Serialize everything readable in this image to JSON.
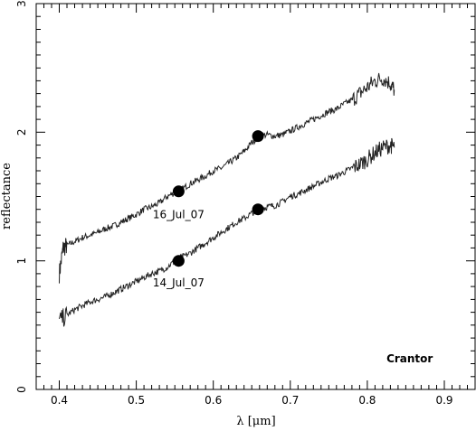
{
  "chart_data": {
    "type": "line",
    "xlabel": "λ [μm]",
    "ylabel": "reflectance",
    "xlim": [
      0.37,
      0.94
    ],
    "ylim": [
      0,
      3
    ],
    "xticks": [
      0.4,
      0.5,
      0.6,
      0.7,
      0.8,
      0.9
    ],
    "xtick_labels": [
      "0.4",
      "0.5",
      "0.6",
      "0.7",
      "0.8",
      "0.9"
    ],
    "yticks": [
      0,
      1,
      2,
      3
    ],
    "ytick_labels": [
      "0",
      "1",
      "2",
      "3"
    ],
    "grid": false,
    "line_color": "#222222",
    "series": [
      {
        "name": "16_Jul_07",
        "x": [
          0.4,
          0.405,
          0.41,
          0.42,
          0.43,
          0.44,
          0.45,
          0.46,
          0.47,
          0.48,
          0.49,
          0.5,
          0.51,
          0.52,
          0.53,
          0.54,
          0.55,
          0.56,
          0.57,
          0.58,
          0.59,
          0.6,
          0.61,
          0.62,
          0.63,
          0.64,
          0.65,
          0.66,
          0.67,
          0.68,
          0.69,
          0.7,
          0.71,
          0.72,
          0.73,
          0.74,
          0.75,
          0.76,
          0.77,
          0.78,
          0.79,
          0.8,
          0.81,
          0.82,
          0.83,
          0.835
        ],
        "y": [
          0.9,
          1.1,
          1.12,
          1.15,
          1.18,
          1.2,
          1.22,
          1.25,
          1.27,
          1.3,
          1.33,
          1.36,
          1.4,
          1.42,
          1.45,
          1.5,
          1.53,
          1.56,
          1.6,
          1.63,
          1.66,
          1.7,
          1.72,
          1.76,
          1.8,
          1.85,
          1.92,
          1.97,
          1.98,
          1.97,
          1.98,
          2.01,
          2.04,
          2.07,
          2.1,
          2.13,
          2.16,
          2.18,
          2.22,
          2.25,
          2.3,
          2.35,
          2.4,
          2.42,
          2.38,
          2.33
        ]
      },
      {
        "name": "14_Jul_07",
        "x": [
          0.4,
          0.41,
          0.42,
          0.43,
          0.44,
          0.45,
          0.46,
          0.47,
          0.48,
          0.49,
          0.5,
          0.51,
          0.52,
          0.53,
          0.54,
          0.55,
          0.56,
          0.57,
          0.58,
          0.59,
          0.6,
          0.61,
          0.62,
          0.63,
          0.64,
          0.65,
          0.66,
          0.67,
          0.68,
          0.69,
          0.7,
          0.71,
          0.72,
          0.73,
          0.74,
          0.75,
          0.76,
          0.77,
          0.78,
          0.79,
          0.8,
          0.81,
          0.82,
          0.83,
          0.835
        ],
        "y": [
          0.53,
          0.58,
          0.62,
          0.65,
          0.68,
          0.7,
          0.72,
          0.75,
          0.78,
          0.81,
          0.84,
          0.87,
          0.9,
          0.92,
          0.95,
          1.0,
          1.03,
          1.06,
          1.1,
          1.14,
          1.18,
          1.22,
          1.26,
          1.3,
          1.33,
          1.37,
          1.4,
          1.42,
          1.43,
          1.46,
          1.5,
          1.52,
          1.55,
          1.58,
          1.61,
          1.64,
          1.66,
          1.69,
          1.72,
          1.75,
          1.79,
          1.84,
          1.88,
          1.9,
          1.88
        ]
      }
    ],
    "markers": [
      {
        "x": 0.555,
        "y": 1.54
      },
      {
        "x": 0.658,
        "y": 1.97
      },
      {
        "x": 0.555,
        "y": 1.0
      },
      {
        "x": 0.658,
        "y": 1.4
      }
    ],
    "annotations": [
      {
        "text": "16_Jul_07",
        "x": 0.555,
        "y": 1.33
      },
      {
        "text": "14_Jul_07",
        "x": 0.555,
        "y": 0.8
      },
      {
        "text": "Crantor",
        "x": 0.855,
        "y": 0.21
      }
    ]
  }
}
